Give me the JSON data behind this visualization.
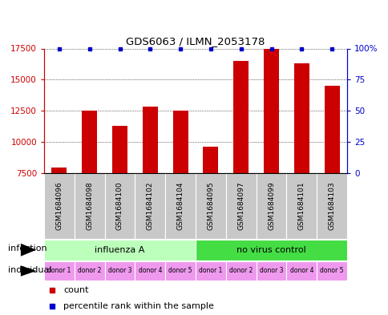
{
  "title": "GDS6063 / ILMN_2053178",
  "samples": [
    "GSM1684096",
    "GSM1684098",
    "GSM1684100",
    "GSM1684102",
    "GSM1684104",
    "GSM1684095",
    "GSM1684097",
    "GSM1684099",
    "GSM1684101",
    "GSM1684103"
  ],
  "counts": [
    7900,
    12500,
    11300,
    12800,
    12500,
    9600,
    16500,
    17500,
    16300,
    14500
  ],
  "bar_color": "#cc0000",
  "percentile_color": "#0000cc",
  "ymin": 7500,
  "ymax": 17500,
  "yticks": [
    7500,
    10000,
    12500,
    15000,
    17500
  ],
  "ytick_labels": [
    "7500",
    "10000",
    "12500",
    "15000",
    "17500"
  ],
  "right_ytick_labels": [
    "0",
    "25",
    "50",
    "75",
    "100%"
  ],
  "infection_groups": [
    {
      "label": "influenza A",
      "start": 0,
      "end": 5,
      "color": "#bbffbb"
    },
    {
      "label": "no virus control",
      "start": 5,
      "end": 10,
      "color": "#44dd44"
    }
  ],
  "individual_labels": [
    "donor 1",
    "donor 2",
    "donor 3",
    "donor 4",
    "donor 5",
    "donor 1",
    "donor 2",
    "donor 3",
    "donor 4",
    "donor 5"
  ],
  "individual_color": "#ee99ee",
  "infection_label": "infection",
  "individual_label": "individual",
  "legend_count_label": "count",
  "legend_percentile_label": "percentile rank within the sample",
  "sample_box_color": "#c8c8c8",
  "grid_color": "black",
  "spine_color": "black"
}
